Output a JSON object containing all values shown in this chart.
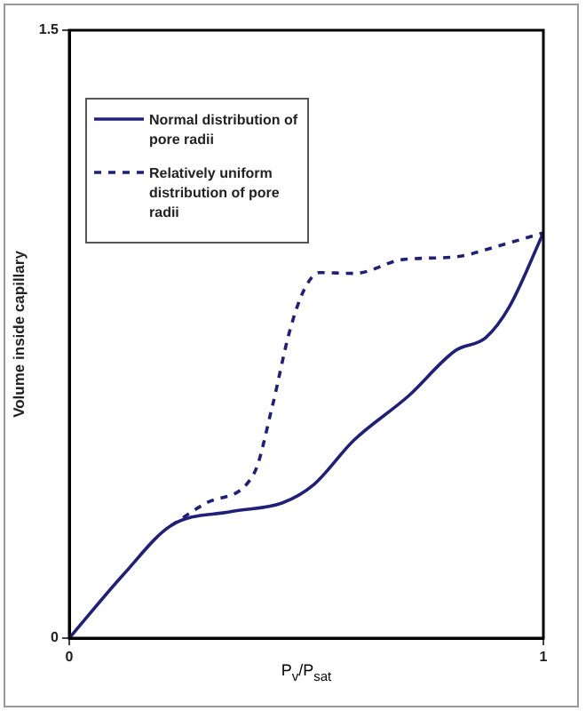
{
  "chart_data": {
    "type": "line",
    "xlabel": "P$_{v}$/P$_{sat}$",
    "ylabel": "Volume inside capillary",
    "xlim": [
      0,
      1
    ],
    "xticks": [
      0,
      1
    ],
    "ylim": [
      0,
      1.5
    ],
    "yticks": [
      0,
      1.5
    ],
    "legend": "top left",
    "marker": "none",
    "series": [
      {
        "name": "Normal distribution of pore radii",
        "color": "#20207a",
        "line_style": "solid",
        "x": [
          0,
          0.115,
          0.215,
          0.34,
          0.45,
          0.515,
          0.6,
          0.715,
          0.815,
          0.878,
          0.928,
          1
        ],
        "values": [
          0,
          0.158,
          0.278,
          0.312,
          0.334,
          0.378,
          0.488,
          0.597,
          0.71,
          0.741,
          0.817,
          1.0
        ]
      },
      {
        "name": "Relatively uniform distribution of pore radii",
        "color": "#20207a",
        "line_style": "dashed",
        "x": [
          0.215,
          0.29,
          0.39,
          0.4275,
          0.465,
          0.496,
          0.5275,
          0.6025,
          0.7025,
          0.815,
          0.915,
          1
        ],
        "values": [
          0.278,
          0.334,
          0.407,
          0.568,
          0.758,
          0.861,
          0.902,
          0.9,
          0.934,
          0.941,
          0.971,
          1.0
        ]
      }
    ]
  }
}
